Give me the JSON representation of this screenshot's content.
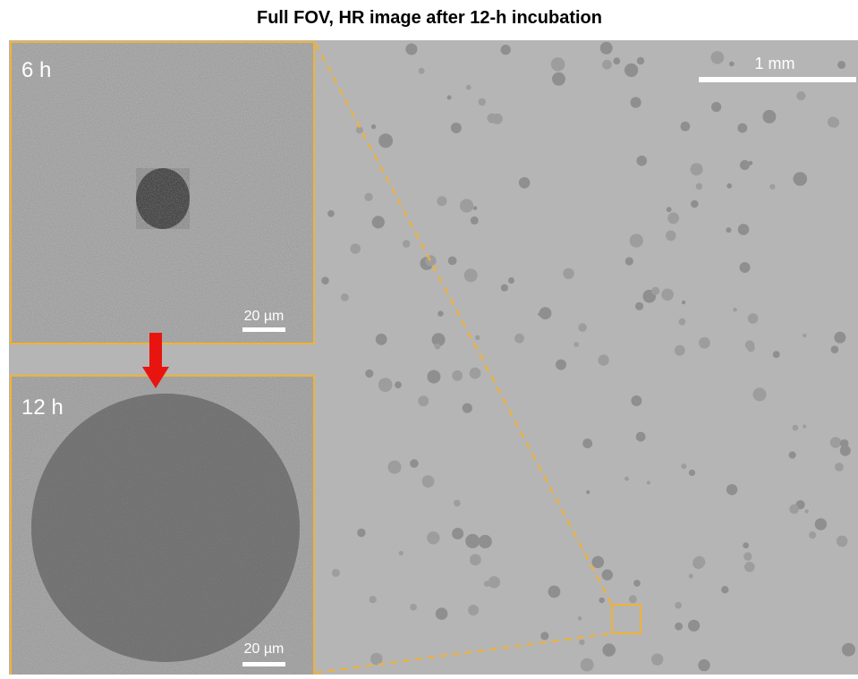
{
  "title": "Full FOV, HR image after 12-h incubation",
  "main_image": {
    "scale_bar_label": "1 mm"
  },
  "insets": [
    {
      "label": "6 h",
      "scale_bar_label": "20 µm"
    },
    {
      "label": "12 h",
      "scale_bar_label": "20 µm"
    }
  ]
}
